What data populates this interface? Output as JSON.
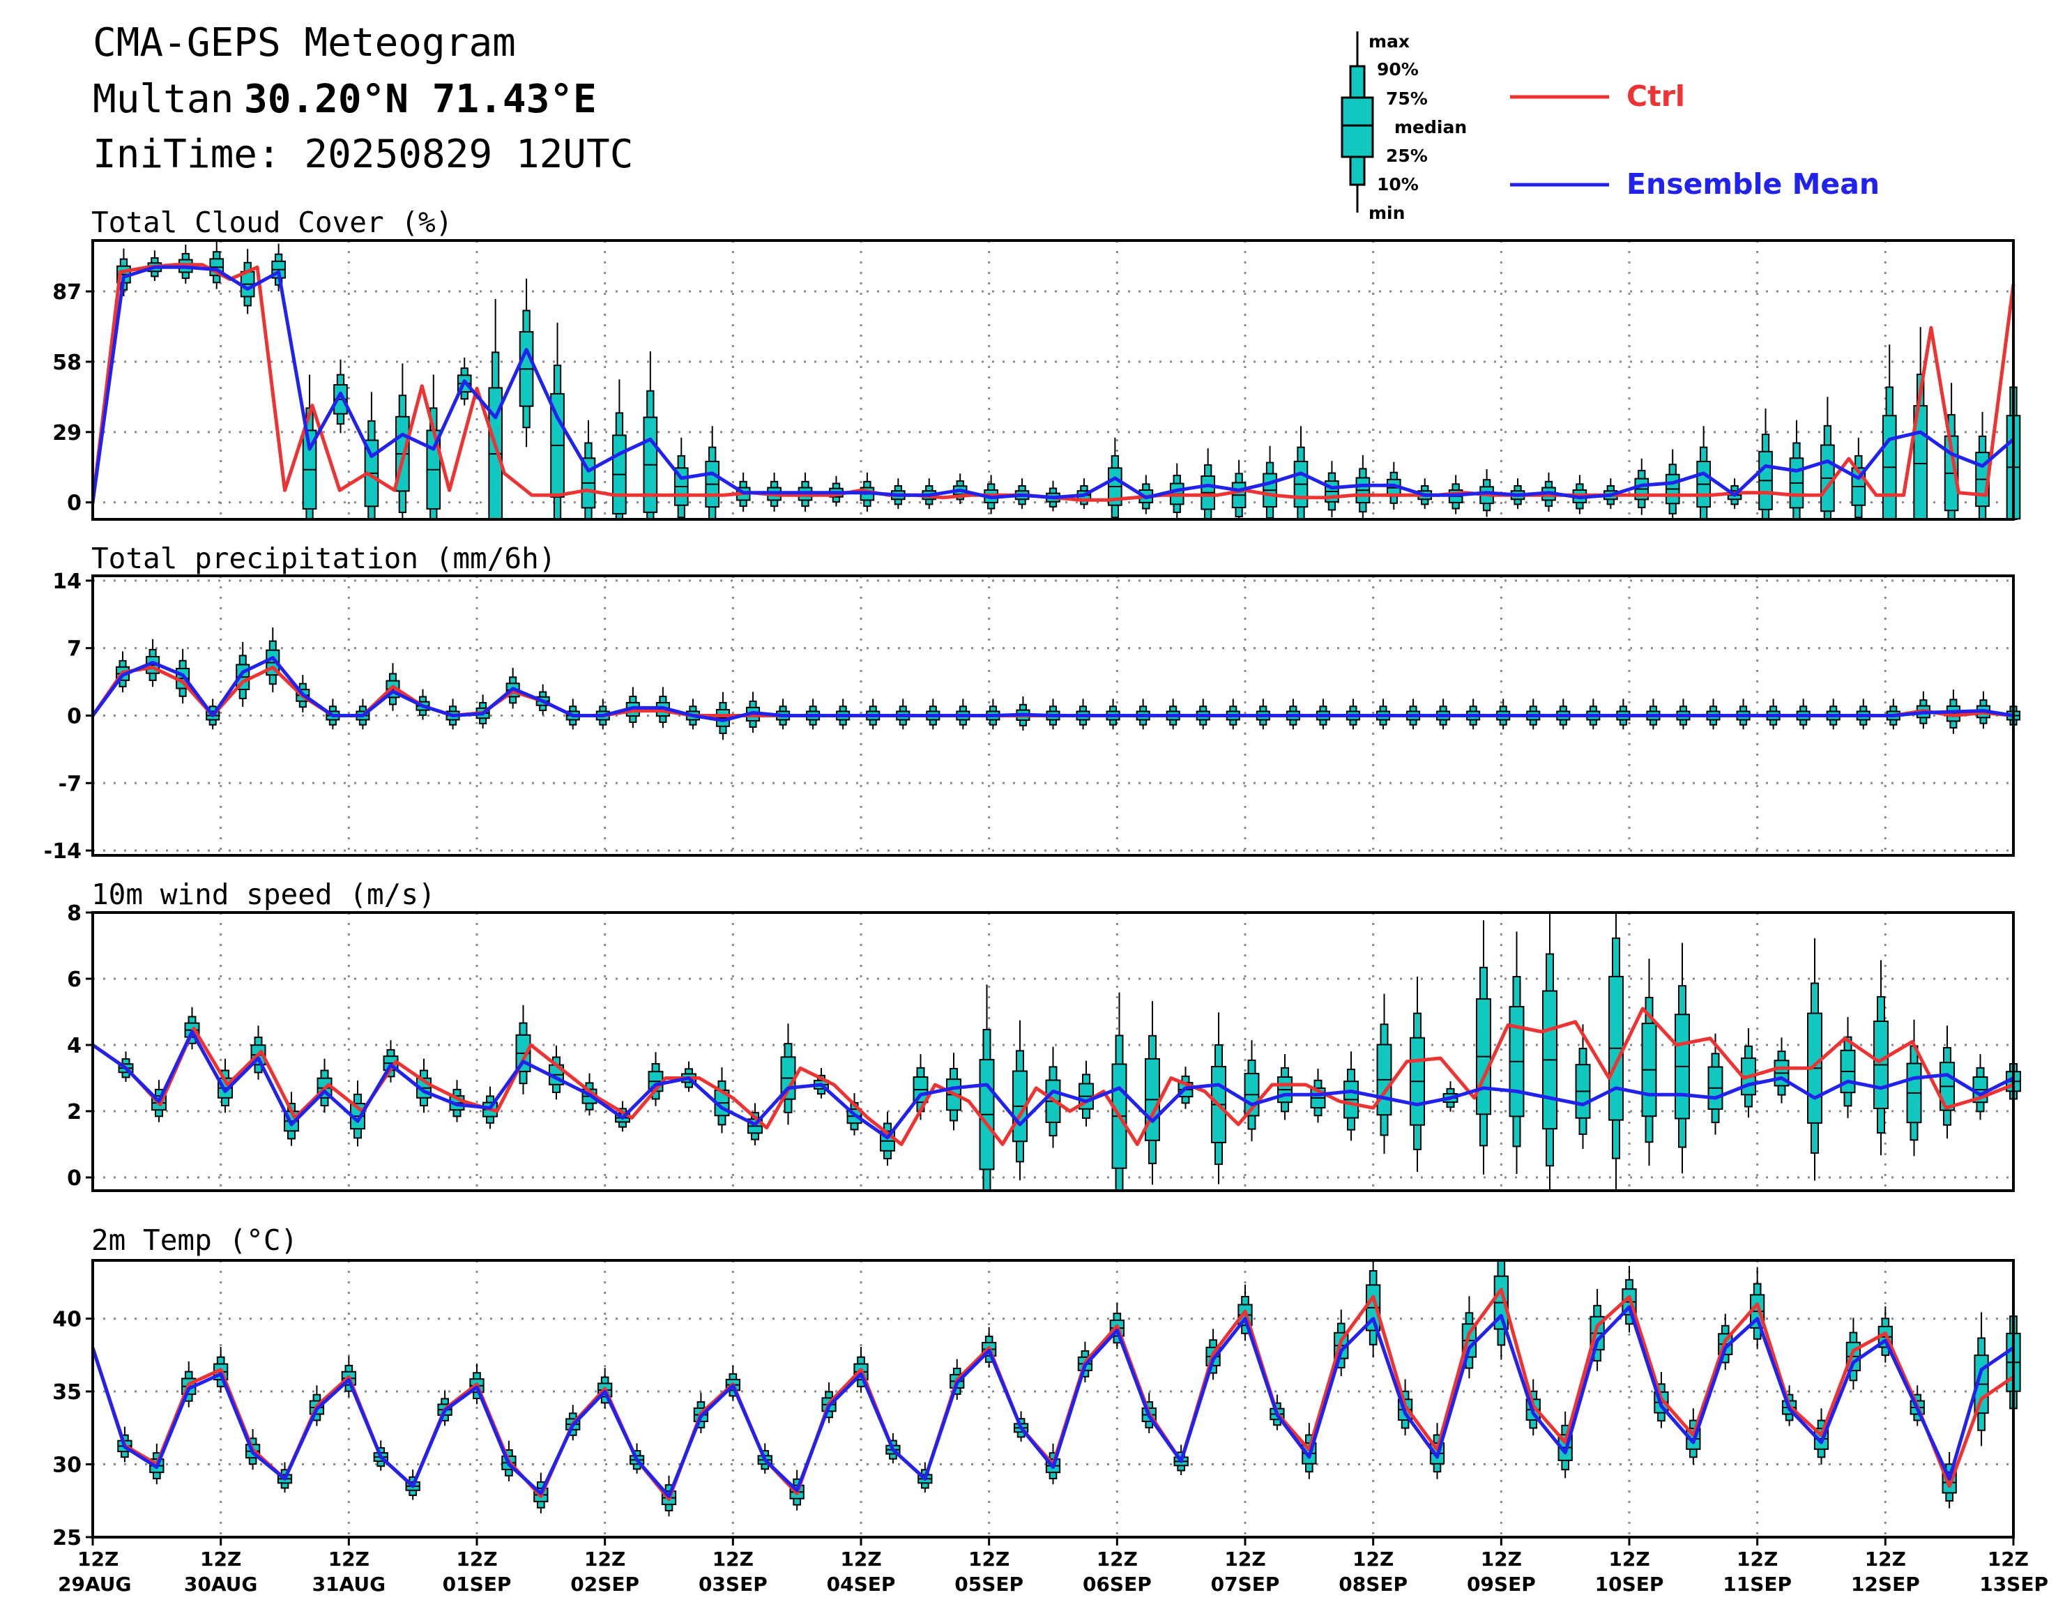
{
  "header": {
    "title": "CMA-GEPS Meteogram",
    "location_name": "Multan",
    "location_coords": "30.20°N 71.43°E",
    "init_time": "IniTime: 20250829 12UTC"
  },
  "legend": {
    "box_labels": [
      "max",
      "90%",
      "75%",
      "median",
      "25%",
      "10%",
      "min"
    ],
    "series": [
      {
        "name": "Ctrl",
        "color": "#ee3333"
      },
      {
        "name": "Ensemble Mean",
        "color": "#2222ee"
      }
    ]
  },
  "colors": {
    "box_fill": "#10c8c0",
    "ctrl": "#ee3333",
    "mean": "#2222ee"
  },
  "x_axis": {
    "labels": [
      {
        "hour": "12Z",
        "date": "29AUG"
      },
      {
        "hour": "12Z",
        "date": "30AUG"
      },
      {
        "hour": "12Z",
        "date": "31AUG"
      },
      {
        "hour": "12Z",
        "date": "01SEP"
      },
      {
        "hour": "12Z",
        "date": "02SEP"
      },
      {
        "hour": "12Z",
        "date": "03SEP"
      },
      {
        "hour": "12Z",
        "date": "04SEP"
      },
      {
        "hour": "12Z",
        "date": "05SEP"
      },
      {
        "hour": "12Z",
        "date": "06SEP"
      },
      {
        "hour": "12Z",
        "date": "07SEP"
      },
      {
        "hour": "12Z",
        "date": "08SEP"
      },
      {
        "hour": "12Z",
        "date": "09SEP"
      },
      {
        "hour": "12Z",
        "date": "10SEP"
      },
      {
        "hour": "12Z",
        "date": "11SEP"
      },
      {
        "hour": "12Z",
        "date": "12SEP"
      },
      {
        "hour": "12Z",
        "date": "13SEP"
      }
    ]
  },
  "chart_data": [
    {
      "type": "boxplot",
      "title": "Total Cloud Cover (%)",
      "ylim": [
        -7,
        108
      ],
      "yticks": [
        0,
        29,
        58,
        87
      ],
      "ctrl": [
        0,
        95,
        97,
        98,
        98,
        92,
        97,
        5,
        40,
        5,
        12,
        5,
        48,
        5,
        47,
        12,
        3,
        3,
        5,
        3,
        3,
        3,
        3,
        3,
        4,
        3,
        3,
        3,
        5,
        3,
        3,
        2,
        3,
        3,
        3,
        2,
        1,
        1,
        2,
        3,
        3,
        3,
        5,
        3,
        2,
        2,
        3,
        3,
        3,
        3,
        4,
        3,
        3,
        3,
        3,
        3,
        3,
        3,
        3,
        3,
        4,
        4,
        3,
        3,
        18,
        3,
        3,
        72,
        4,
        3,
        90
      ],
      "mean": [
        0,
        93,
        97,
        97,
        96,
        88,
        95,
        22,
        45,
        19,
        28,
        22,
        50,
        35,
        63,
        35,
        13,
        20,
        26,
        10,
        12,
        4,
        4,
        4,
        4,
        4,
        3,
        3,
        5,
        2,
        3,
        2,
        3,
        10,
        2,
        5,
        7,
        5,
        8,
        12,
        6,
        7,
        7,
        3,
        3,
        4,
        3,
        4,
        2,
        3,
        7,
        8,
        12,
        3,
        15,
        13,
        17,
        10,
        26,
        29,
        20,
        15,
        26
      ]
    },
    {
      "type": "boxplot",
      "title": "Total precipitation (mm/6h)",
      "ylim": [
        -14.5,
        14.5
      ],
      "yticks": [
        -14,
        -7,
        0,
        7,
        14
      ],
      "ctrl": [
        0,
        4.5,
        5,
        3.5,
        0,
        3.5,
        5,
        2,
        0,
        0,
        3,
        1,
        0,
        0.3,
        2.5,
        1.5,
        0,
        0,
        0.5,
        0.5,
        0,
        0,
        0,
        0,
        0,
        0,
        0,
        0,
        0,
        0,
        0,
        0,
        0,
        0,
        0,
        0,
        0,
        0,
        0,
        0,
        0,
        0,
        0,
        0,
        0,
        0,
        0,
        0,
        0,
        0,
        0,
        0,
        0,
        0,
        0,
        0,
        0,
        0,
        0,
        0,
        0,
        0.5,
        0,
        0.3,
        0
      ],
      "mean": [
        0,
        4.2,
        5.5,
        4.2,
        0,
        4.5,
        6,
        2.2,
        0,
        0,
        2.5,
        1,
        0,
        0.2,
        2.8,
        1.5,
        0,
        0,
        0.8,
        0.8,
        0,
        -0.5,
        0.3,
        0,
        0,
        0,
        0,
        0,
        0,
        0,
        0,
        0.1,
        0,
        0,
        0,
        0,
        0,
        0,
        0,
        0,
        0,
        0,
        0,
        0,
        0,
        0,
        0,
        0,
        0,
        0,
        0,
        0,
        0,
        0,
        0,
        0,
        0,
        0,
        0,
        0,
        0,
        0.3,
        0.4,
        0.5,
        0
      ]
    },
    {
      "type": "boxplot",
      "title": "10m wind speed (m/s)",
      "ylim": [
        -0.4,
        8
      ],
      "yticks": [
        0,
        2,
        4,
        6,
        8
      ],
      "ctrl": [
        4,
        3.3,
        2.2,
        4.5,
        2.8,
        3.8,
        1.8,
        2.8,
        2,
        3.5,
        2.8,
        2.3,
        2,
        4,
        3.2,
        2.4,
        1.8,
        3,
        3,
        2.4,
        1.5,
        3.3,
        2.8,
        1.8,
        1,
        2.8,
        2.3,
        1,
        2.7,
        2,
        2.6,
        1,
        3,
        2.6,
        1.6,
        2.8,
        2.8,
        2.3,
        2.1,
        3.5,
        3.6,
        2.4,
        4.6,
        4.4,
        4.7,
        3,
        5.1,
        4,
        4.2,
        3,
        3.3,
        3.3,
        4.2,
        3.5,
        4.1,
        2.1,
        2.4,
        2.8
      ],
      "mean": [
        4,
        3.3,
        2.3,
        4.4,
        2.6,
        3.6,
        1.6,
        2.6,
        1.7,
        3.4,
        2.6,
        2.2,
        2.1,
        3.5,
        3,
        2.5,
        1.8,
        2.8,
        3,
        2.1,
        1.6,
        2.7,
        2.8,
        1.9,
        1.2,
        2.5,
        2.7,
        2.8,
        1.6,
        2.6,
        2.3,
        2.7,
        1.7,
        2.7,
        2.8,
        2.2,
        2.5,
        2.5,
        2.6,
        2.4,
        2.2,
        2.4,
        2.7,
        2.6,
        2.4,
        2.2,
        2.7,
        2.5,
        2.5,
        2.4,
        2.8,
        3,
        2.4,
        2.9,
        2.7,
        3,
        3.1,
        2.5,
        3
      ]
    },
    {
      "type": "boxplot",
      "title": "2m Temp (°C)",
      "ylim": [
        25,
        44
      ],
      "yticks": [
        25,
        30,
        35,
        40
      ],
      "ctrl": [
        38,
        31.3,
        30,
        35.5,
        36.5,
        31,
        29,
        34,
        36,
        30.5,
        28.5,
        33.8,
        35.5,
        30.2,
        27.8,
        32.8,
        35.2,
        30.3,
        27.6,
        33.5,
        35.5,
        30.3,
        28,
        34.2,
        36.5,
        31,
        29,
        35.8,
        38,
        32.5,
        30,
        37,
        39.5,
        33.5,
        30.2,
        37.6,
        40.5,
        33.5,
        31,
        38.5,
        41.5,
        34,
        31,
        39,
        42,
        34,
        31.5,
        39.5,
        41.5,
        34.5,
        32,
        38.5,
        41,
        34,
        32,
        37.8,
        39,
        34,
        28.5,
        34.5,
        36
      ],
      "mean": [
        38,
        31.2,
        29.8,
        35.2,
        36.2,
        30.8,
        29,
        33.8,
        35.8,
        30.5,
        28.5,
        33.7,
        35.3,
        30,
        28,
        32.7,
        35,
        30.3,
        27.8,
        33.3,
        35.4,
        30.3,
        28.2,
        34,
        36.2,
        31,
        29,
        35.6,
        37.8,
        32.5,
        29.8,
        36.8,
        39.2,
        33.3,
        30.2,
        37.2,
        40,
        33.4,
        30.5,
        37.8,
        40,
        33.5,
        30.5,
        38,
        40.2,
        33.5,
        30.8,
        38.5,
        40.8,
        34,
        31.5,
        38,
        40,
        33.8,
        31.5,
        37,
        38.5,
        33.8,
        29,
        36.5,
        38
      ]
    }
  ]
}
